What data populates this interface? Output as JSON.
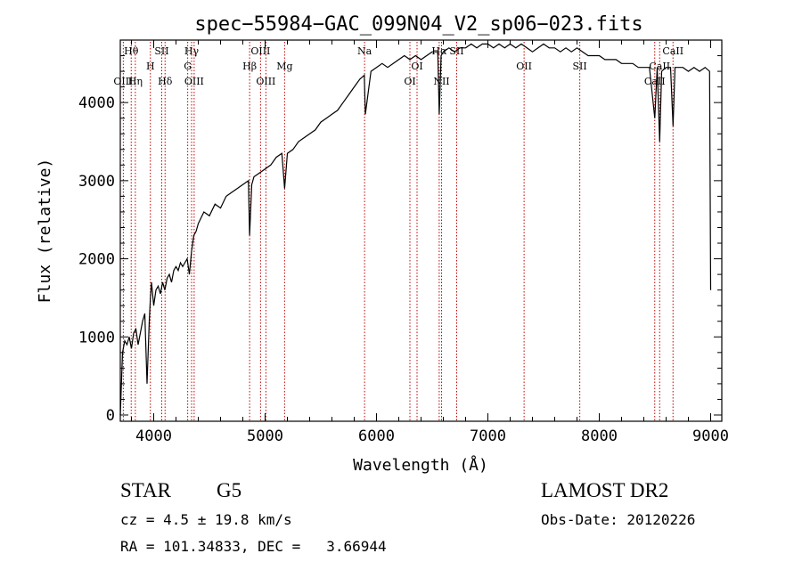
{
  "chart_data": {
    "type": "line",
    "title": "spec−55984−GAC_099N04_V2_sp06−023.fits",
    "xlabel": "Wavelength (Å)",
    "ylabel": "Flux (relative)",
    "xlim": [
      3700,
      9100
    ],
    "ylim": [
      -80,
      4800
    ],
    "xticks": [
      4000,
      5000,
      6000,
      7000,
      8000,
      9000
    ],
    "yticks": [
      0,
      1000,
      2000,
      3000,
      4000
    ],
    "grid": false,
    "series": [
      {
        "x": [
          3700,
          3720,
          3740,
          3760,
          3780,
          3800,
          3820,
          3840,
          3860,
          3880,
          3900,
          3920,
          3940,
          3960,
          3970,
          3980,
          4000,
          4020,
          4040,
          4060,
          4080,
          4100,
          4120,
          4140,
          4160,
          4180,
          4200,
          4220,
          4240,
          4260,
          4280,
          4300,
          4320,
          4340,
          4360,
          4380,
          4400,
          4450,
          4500,
          4550,
          4600,
          4650,
          4700,
          4750,
          4800,
          4850,
          4861,
          4880,
          4900,
          4950,
          5000,
          5050,
          5100,
          5150,
          5175,
          5200,
          5250,
          5300,
          5350,
          5400,
          5450,
          5500,
          5550,
          5600,
          5650,
          5700,
          5750,
          5800,
          5850,
          5890,
          5900,
          5950,
          6000,
          6050,
          6100,
          6150,
          6200,
          6250,
          6300,
          6350,
          6400,
          6450,
          6500,
          6550,
          6563,
          6580,
          6600,
          6650,
          6700,
          6750,
          6800,
          6850,
          6900,
          6950,
          7000,
          7050,
          7100,
          7150,
          7200,
          7250,
          7300,
          7350,
          7400,
          7450,
          7500,
          7550,
          7600,
          7650,
          7700,
          7750,
          7800,
          7850,
          7900,
          7950,
          8000,
          8050,
          8100,
          8150,
          8200,
          8250,
          8300,
          8350,
          8400,
          8450,
          8498,
          8520,
          8542,
          8560,
          8600,
          8640,
          8662,
          8680,
          8700,
          8750,
          8800,
          8850,
          8900,
          8950,
          8990,
          9000
        ],
        "values": [
          0,
          800,
          950,
          900,
          1000,
          850,
          1050,
          1100,
          900,
          1050,
          1200,
          1300,
          400,
          1200,
          1500,
          1700,
          1400,
          1600,
          1650,
          1550,
          1700,
          1600,
          1750,
          1800,
          1700,
          1850,
          1900,
          1850,
          1950,
          1900,
          1950,
          2000,
          1800,
          2100,
          2300,
          2350,
          2450,
          2600,
          2550,
          2700,
          2650,
          2800,
          2850,
          2900,
          2950,
          3000,
          2300,
          2950,
          3050,
          3100,
          3150,
          3200,
          3300,
          3350,
          2900,
          3350,
          3400,
          3500,
          3550,
          3600,
          3650,
          3750,
          3800,
          3850,
          3900,
          4000,
          4100,
          4200,
          4300,
          4350,
          3850,
          4400,
          4450,
          4500,
          4450,
          4500,
          4550,
          4600,
          4550,
          4600,
          4550,
          4600,
          4650,
          4650,
          3850,
          4600,
          4650,
          4700,
          4650,
          4700,
          4700,
          4750,
          4700,
          4750,
          4750,
          4700,
          4750,
          4700,
          4750,
          4700,
          4750,
          4700,
          4650,
          4700,
          4750,
          4700,
          4700,
          4650,
          4700,
          4650,
          4700,
          4650,
          4600,
          4600,
          4600,
          4550,
          4550,
          4550,
          4500,
          4500,
          4500,
          4450,
          4450,
          4450,
          3800,
          4450,
          3500,
          4400,
          4450,
          4450,
          3700,
          4450,
          4450,
          4450,
          4400,
          4450,
          4400,
          4450,
          4400,
          1600
        ]
      }
    ],
    "lines": [
      {
        "label": "Hθ",
        "wave": 3798,
        "row": 0
      },
      {
        "label": "H",
        "wave": 3970,
        "row": 1
      },
      {
        "label": "SII",
        "wave": 4072,
        "row": 0
      },
      {
        "label": "Hδ",
        "wave": 4102,
        "row": 2
      },
      {
        "label": "OIII",
        "wave": 3727,
        "row": 2
      },
      {
        "label": "Hη",
        "wave": 3835,
        "row": 2
      },
      {
        "label": "Hγ",
        "wave": 4340,
        "row": 0
      },
      {
        "label": "G",
        "wave": 4305,
        "row": 1
      },
      {
        "label": "OIII",
        "wave": 4363,
        "row": 2
      },
      {
        "label": "OIII",
        "wave": 4959,
        "row": 0
      },
      {
        "label": "Hβ",
        "wave": 4861,
        "row": 1
      },
      {
        "label": "OIII",
        "wave": 5007,
        "row": 2
      },
      {
        "label": "Mg",
        "wave": 5175,
        "row": 1
      },
      {
        "label": "Na",
        "wave": 5893,
        "row": 0
      },
      {
        "label": "OI",
        "wave": 6364,
        "row": 1
      },
      {
        "label": "OI",
        "wave": 6300,
        "row": 2
      },
      {
        "label": "Hα",
        "wave": 6563,
        "row": 0
      },
      {
        "label": "SII",
        "wave": 6720,
        "row": 0
      },
      {
        "label": "NII",
        "wave": 6584,
        "row": 2
      },
      {
        "label": "OII",
        "wave": 7325,
        "row": 1
      },
      {
        "label": "SII",
        "wave": 7825,
        "row": 1
      },
      {
        "label": "CaII",
        "wave": 8662,
        "row": 0
      },
      {
        "label": "CaII",
        "wave": 8542,
        "row": 1
      },
      {
        "label": "CaII",
        "wave": 8498,
        "row": 2
      }
    ],
    "line_color": "#c00000"
  },
  "info": {
    "class": "STAR",
    "subclass": "G5",
    "survey": "LAMOST DR2",
    "cz": "cz = 4.5 ± 19.8 km/s",
    "obs_date": "Obs-Date: 20120226",
    "radec": "RA = 101.34833, DEC =   3.66944"
  }
}
